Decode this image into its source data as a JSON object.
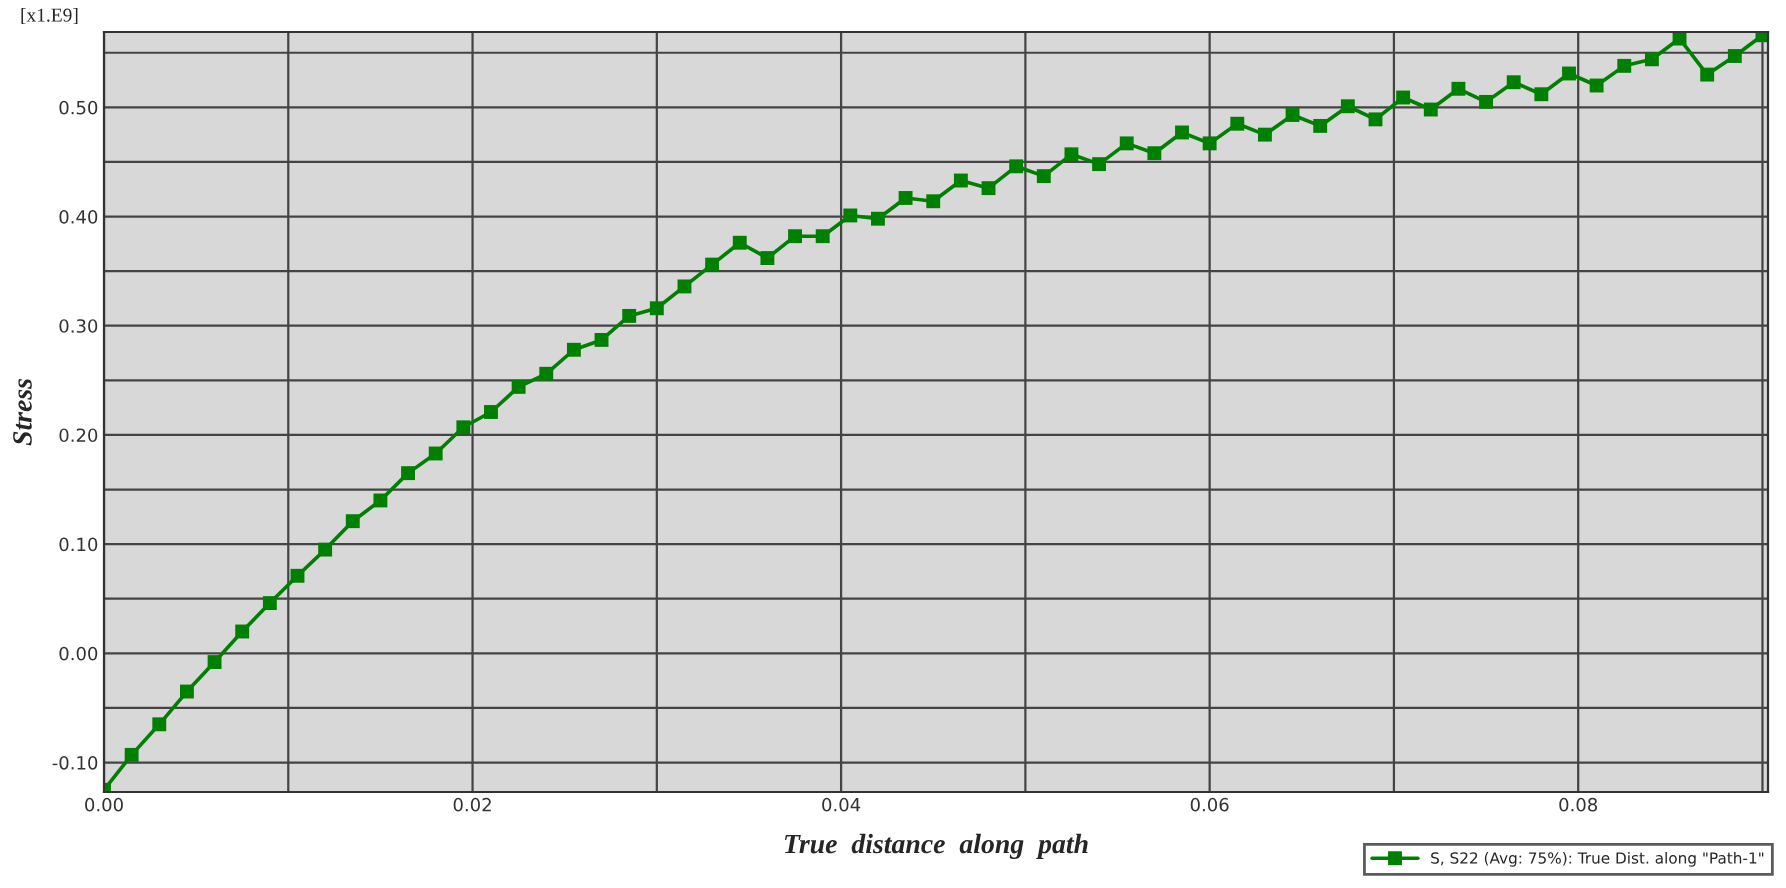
{
  "chart_data": {
    "type": "line",
    "xlabel": "True  distance  along  path",
    "ylabel": "Stress",
    "annotations": [
      "[x1.E9]"
    ],
    "x": [
      0.0,
      0.0015,
      0.003,
      0.0045,
      0.006,
      0.0075,
      0.009,
      0.0105,
      0.012,
      0.0135,
      0.015,
      0.0165,
      0.018,
      0.0195,
      0.021,
      0.0225,
      0.024,
      0.0255,
      0.027,
      0.0285,
      0.03,
      0.0315,
      0.033,
      0.0345,
      0.036,
      0.0375,
      0.039,
      0.0405,
      0.042,
      0.0435,
      0.045,
      0.0465,
      0.048,
      0.0495,
      0.051,
      0.0525,
      0.054,
      0.0555,
      0.057,
      0.0585,
      0.06,
      0.0615,
      0.063,
      0.0645,
      0.066,
      0.0675,
      0.069,
      0.0705,
      0.072,
      0.0735,
      0.075,
      0.0765,
      0.078,
      0.0795,
      0.081,
      0.0825,
      0.084,
      0.0855,
      0.087,
      0.0885,
      0.09
    ],
    "series": [
      {
        "name": "S, S22 (Avg: 75%): True Dist. along \"Path-1\"",
        "color": "#008000",
        "values": [
          -0.125,
          -0.093,
          -0.065,
          -0.035,
          -0.008,
          0.02,
          0.046,
          0.071,
          0.095,
          0.121,
          0.14,
          0.165,
          0.183,
          0.207,
          0.221,
          0.244,
          0.256,
          0.278,
          0.287,
          0.309,
          0.316,
          0.336,
          0.356,
          0.376,
          0.362,
          0.382,
          0.382,
          0.401,
          0.398,
          0.417,
          0.414,
          0.433,
          0.426,
          0.446,
          0.437,
          0.457,
          0.448,
          0.467,
          0.458,
          0.477,
          0.467,
          0.485,
          0.475,
          0.493,
          0.483,
          0.501,
          0.489,
          0.509,
          0.498,
          0.517,
          0.505,
          0.523,
          0.512,
          0.531,
          0.52,
          0.538,
          0.544,
          0.563,
          0.53,
          0.547,
          0.566
        ]
      }
    ],
    "xlim": [
      0,
      0.0903
    ],
    "ylim": [
      -0.127,
      0.569
    ],
    "xticks": [
      {
        "value": 0.0,
        "label": "0.00"
      },
      {
        "value": 0.01,
        "label": null
      },
      {
        "value": 0.02,
        "label": "0.02"
      },
      {
        "value": 0.03,
        "label": null
      },
      {
        "value": 0.04,
        "label": "0.04"
      },
      {
        "value": 0.05,
        "label": null
      },
      {
        "value": 0.06,
        "label": "0.06"
      },
      {
        "value": 0.07,
        "label": null
      },
      {
        "value": 0.08,
        "label": "0.08"
      },
      {
        "value": 0.09,
        "label": null
      }
    ],
    "yticks": [
      {
        "value": -0.1,
        "label": "-0.10"
      },
      {
        "value": -0.05,
        "label": null
      },
      {
        "value": 0.0,
        "label": "0.00"
      },
      {
        "value": 0.05,
        "label": null
      },
      {
        "value": 0.1,
        "label": "0.10"
      },
      {
        "value": 0.15,
        "label": null
      },
      {
        "value": 0.2,
        "label": "0.20"
      },
      {
        "value": 0.25,
        "label": null
      },
      {
        "value": 0.3,
        "label": "0.30"
      },
      {
        "value": 0.35,
        "label": null
      },
      {
        "value": 0.4,
        "label": "0.40"
      },
      {
        "value": 0.45,
        "label": null
      },
      {
        "value": 0.5,
        "label": "0.50"
      },
      {
        "value": 0.55,
        "label": null
      }
    ],
    "grid": true,
    "legend": "bottom right",
    "marker": "square",
    "line_style": "solid"
  }
}
